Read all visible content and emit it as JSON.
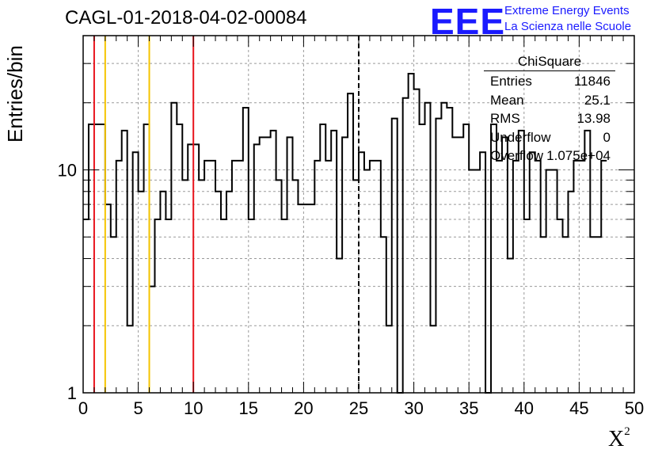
{
  "title": "CAGL-01-2018-04-02-00084",
  "logo": {
    "mark": "EEE",
    "line1": "Extreme Energy Events",
    "line2": "La Scienza nelle Scuole"
  },
  "stats_box": {
    "title": "ChiSquare",
    "rows": [
      {
        "label": "Entries",
        "value": "11846"
      },
      {
        "label": "Mean",
        "value": "25.1"
      },
      {
        "label": "RMS",
        "value": "13.98"
      },
      {
        "label": "Underflow",
        "value": "0"
      },
      {
        "label": "Overflow",
        "value": "1.075e+04"
      }
    ]
  },
  "chart_data": {
    "type": "histogram",
    "ylabel": "Entries/bin",
    "xlabel": "X",
    "xlabel_sup": "2",
    "xlim": [
      0,
      50
    ],
    "ylim": [
      1,
      40
    ],
    "yscale": "log",
    "grid": true,
    "bin_width": 0.5,
    "x_tick_labels": [
      "0",
      "5",
      "10",
      "15",
      "20",
      "25",
      "30",
      "35",
      "40",
      "45",
      "50"
    ],
    "x_tick_values": [
      0,
      5,
      10,
      15,
      20,
      25,
      30,
      35,
      40,
      45,
      50
    ],
    "y_tick_labels": [
      "1",
      "10"
    ],
    "y_tick_values": [
      1,
      10
    ],
    "values": [
      6,
      16,
      16,
      16,
      7,
      5,
      11,
      15,
      2,
      12,
      8,
      16,
      3,
      6,
      8,
      6,
      20,
      16,
      9,
      13,
      13,
      9,
      11,
      11,
      8,
      6,
      8,
      11,
      11,
      19,
      6,
      13,
      14,
      14,
      15,
      9,
      6,
      14,
      9,
      7,
      7,
      7,
      11,
      16,
      11,
      15,
      4,
      14,
      22,
      9,
      12,
      10,
      11,
      11,
      5,
      2,
      17,
      1,
      21,
      27,
      23,
      16,
      20,
      2,
      17,
      20,
      19,
      14,
      14,
      16,
      10,
      10,
      12,
      1,
      16,
      11,
      14,
      4,
      11,
      15,
      6,
      12,
      11,
      5,
      10,
      10,
      6,
      5,
      8,
      11,
      11,
      15,
      5,
      5,
      11
    ],
    "vertical_lines": [
      {
        "x": 1,
        "color": "#e8141c",
        "style": "solid"
      },
      {
        "x": 2,
        "color": "#f5c400",
        "style": "solid"
      },
      {
        "x": 6,
        "color": "#f5c400",
        "style": "solid"
      },
      {
        "x": 10,
        "color": "#e8141c",
        "style": "solid"
      },
      {
        "x": 25,
        "color": "#000000",
        "style": "dashed"
      }
    ]
  }
}
